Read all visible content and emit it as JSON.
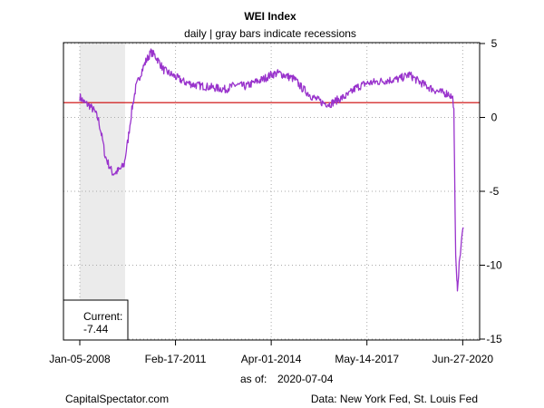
{
  "chart_data": {
    "type": "line",
    "title": "WEI Index",
    "subtitle": "daily | gray bars indicate recessions",
    "x_tick_labels": [
      "Jan-05-2008",
      "Feb-17-2011",
      "Apr-01-2014",
      "May-14-2017",
      "Jun-27-2020"
    ],
    "x_tick_dates": [
      "2008-01-05",
      "2011-02-17",
      "2014-04-01",
      "2017-05-14",
      "2020-06-27"
    ],
    "y_ticks": [
      5,
      0,
      -5,
      -10,
      -15
    ],
    "ylim": [
      -15,
      5
    ],
    "xlim": [
      "2008-01-05",
      "2020-07-04"
    ],
    "y_axis_side": "right",
    "grid": true,
    "reference_line": {
      "y": 1.0,
      "color": "#cc0000"
    },
    "recession_band": {
      "start": "2008-01-05",
      "end": "2009-06-27",
      "color": "#ebebeb"
    },
    "series": [
      {
        "color": "#9933cc",
        "points": [
          [
            "2008-01-05",
            1.4
          ],
          [
            "2008-03-01",
            1.0
          ],
          [
            "2008-05-01",
            0.8
          ],
          [
            "2008-07-01",
            0.4
          ],
          [
            "2008-08-15",
            -0.2
          ],
          [
            "2008-10-01",
            -1.5
          ],
          [
            "2008-11-01",
            -2.6
          ],
          [
            "2008-12-15",
            -3.2
          ],
          [
            "2009-02-01",
            -3.8
          ],
          [
            "2009-03-15",
            -3.7
          ],
          [
            "2009-05-01",
            -3.5
          ],
          [
            "2009-06-15",
            -3.2
          ],
          [
            "2009-08-01",
            -1.5
          ],
          [
            "2009-09-15",
            0.5
          ],
          [
            "2009-11-01",
            2.0
          ],
          [
            "2010-01-01",
            3.0
          ],
          [
            "2010-03-01",
            3.8
          ],
          [
            "2010-05-01",
            4.4
          ],
          [
            "2010-06-15",
            4.2
          ],
          [
            "2010-08-01",
            3.8
          ],
          [
            "2010-10-01",
            3.2
          ],
          [
            "2010-12-01",
            3.0
          ],
          [
            "2011-02-01",
            2.8
          ],
          [
            "2011-06-01",
            2.4
          ],
          [
            "2011-10-01",
            2.2
          ],
          [
            "2012-02-01",
            2.1
          ],
          [
            "2012-06-01",
            2.0
          ],
          [
            "2012-10-01",
            1.9
          ],
          [
            "2013-02-01",
            2.2
          ],
          [
            "2013-06-01",
            2.1
          ],
          [
            "2013-10-01",
            2.4
          ],
          [
            "2014-01-01",
            2.6
          ],
          [
            "2014-04-01",
            2.9
          ],
          [
            "2014-07-01",
            3.0
          ],
          [
            "2014-10-01",
            2.8
          ],
          [
            "2015-01-01",
            2.6
          ],
          [
            "2015-04-01",
            2.0
          ],
          [
            "2015-08-01",
            1.4
          ],
          [
            "2015-12-01",
            1.0
          ],
          [
            "2016-03-01",
            0.9
          ],
          [
            "2016-06-01",
            1.2
          ],
          [
            "2016-10-01",
            1.5
          ],
          [
            "2017-01-01",
            2.0
          ],
          [
            "2017-05-01",
            2.3
          ],
          [
            "2017-09-01",
            2.4
          ],
          [
            "2018-01-01",
            2.5
          ],
          [
            "2018-06-01",
            2.6
          ],
          [
            "2018-10-01",
            2.9
          ],
          [
            "2019-01-01",
            2.5
          ],
          [
            "2019-06-01",
            2.0
          ],
          [
            "2019-10-01",
            1.7
          ],
          [
            "2020-01-15",
            1.6
          ],
          [
            "2020-02-29",
            1.3
          ],
          [
            "2020-03-14",
            0.6
          ],
          [
            "2020-03-21",
            -3.0
          ],
          [
            "2020-04-04",
            -9.5
          ],
          [
            "2020-04-18",
            -11.2
          ],
          [
            "2020-04-25",
            -11.5
          ],
          [
            "2020-05-09",
            -10.5
          ],
          [
            "2020-05-23",
            -9.5
          ],
          [
            "2020-06-06",
            -8.8
          ],
          [
            "2020-06-20",
            -8.0
          ],
          [
            "2020-07-04",
            -7.44
          ]
        ]
      }
    ]
  },
  "current_box": {
    "label": "Current:",
    "value": "-7.44"
  },
  "as_of": {
    "label": "as of:",
    "date": "2020-07-04"
  },
  "footer": {
    "left": "CapitalSpectator.com",
    "right": "Data: New York Fed, St. Louis Fed"
  }
}
